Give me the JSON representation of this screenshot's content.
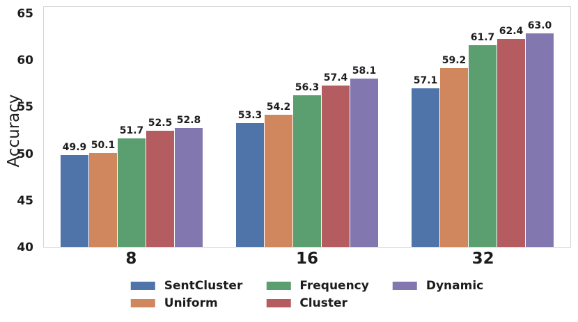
{
  "chart_data": {
    "type": "bar",
    "title": "",
    "xlabel": "",
    "ylabel": "Accuracy",
    "ylim": [
      40,
      65
    ],
    "yticks": [
      40,
      45,
      50,
      55,
      60,
      65
    ],
    "categories": [
      "8",
      "16",
      "32"
    ],
    "series": [
      {
        "name": "SentCluster",
        "color": "#4F74A9",
        "values": [
          49.9,
          53.3,
          57.1
        ]
      },
      {
        "name": "Uniform",
        "color": "#D0875D",
        "values": [
          50.1,
          54.2,
          59.2
        ]
      },
      {
        "name": "Frequency",
        "color": "#5B9E6F",
        "values": [
          51.7,
          56.3,
          61.7
        ]
      },
      {
        "name": "Cluster",
        "color": "#B55C60",
        "values": [
          52.5,
          57.4,
          62.4
        ]
      },
      {
        "name": "Dynamic",
        "color": "#8277AE",
        "values": [
          52.8,
          58.1,
          63.0
        ]
      }
    ],
    "bar_value_labels": [
      [
        "49.9",
        "50.1",
        "51.7",
        "52.5",
        "52.8"
      ],
      [
        "53.3",
        "54.2",
        "56.3",
        "57.4",
        "58.1"
      ],
      [
        "57.1",
        "59.2",
        "61.7",
        "62.4",
        "63.0"
      ]
    ],
    "grid": false,
    "legend_position": "bottom",
    "legend_rows": 2,
    "colors": {
      "text": "#1c1c1c",
      "axis_border": "#d4d4d9",
      "background": "#ffffff"
    }
  }
}
